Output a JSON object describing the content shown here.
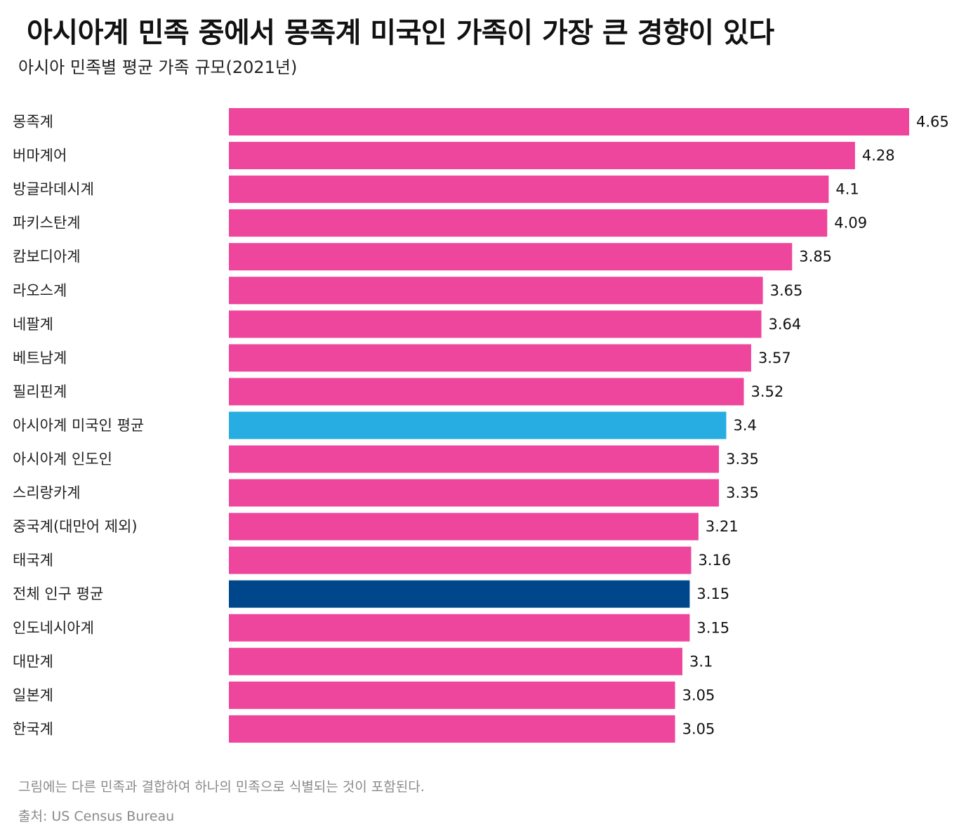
{
  "header": {
    "title": "아시아계 민족 중에서 몽족계 미국인 가족이 가장 큰 경향이 있다",
    "subtitle": "아시아 민족별 평균 가족 규모(2021년)"
  },
  "colors": {
    "default_bar": "#ee459d",
    "asian_average_bar": "#27ade2",
    "total_average_bar": "#00468b"
  },
  "chart_data": {
    "type": "bar",
    "orientation": "horizontal",
    "title": "아시아 민족별 평균 가족 규모(2021년)",
    "categories": [
      "몽족계",
      "버마계어",
      "방글라데시계",
      "파키스탄계",
      "캄보디아계",
      "라오스계",
      "네팔계",
      "베트남계",
      "필리핀계",
      "아시아계 미국인 평균",
      "아시아계 인도인",
      "스리랑카계",
      "중국계(대만어 제외)",
      "태국계",
      "전체 인구 평균",
      "인도네시아계",
      "대만계",
      "일본계",
      "한국계"
    ],
    "values": [
      4.65,
      4.28,
      4.1,
      4.09,
      3.85,
      3.65,
      3.64,
      3.57,
      3.52,
      3.4,
      3.35,
      3.35,
      3.21,
      3.16,
      3.15,
      3.15,
      3.1,
      3.05,
      3.05
    ],
    "value_labels": [
      "4.65",
      "4.28",
      "4.1",
      "4.09",
      "3.85",
      "3.65",
      "3.64",
      "3.57",
      "3.52",
      "3.4",
      "3.35",
      "3.35",
      "3.21",
      "3.16",
      "3.15",
      "3.15",
      "3.1",
      "3.05",
      "3.05"
    ],
    "highlight": {
      "아시아계 미국인 평균": "#27ade2",
      "전체 인구 평균": "#00468b"
    },
    "xaxis_visible": false,
    "grid": false,
    "legend": "none"
  },
  "footer": {
    "note": "그림에는 다른 민족과 결합하여 하나의 민족으로 식별되는 것이 포함된다.",
    "source": "출처: US Census Bureau"
  }
}
